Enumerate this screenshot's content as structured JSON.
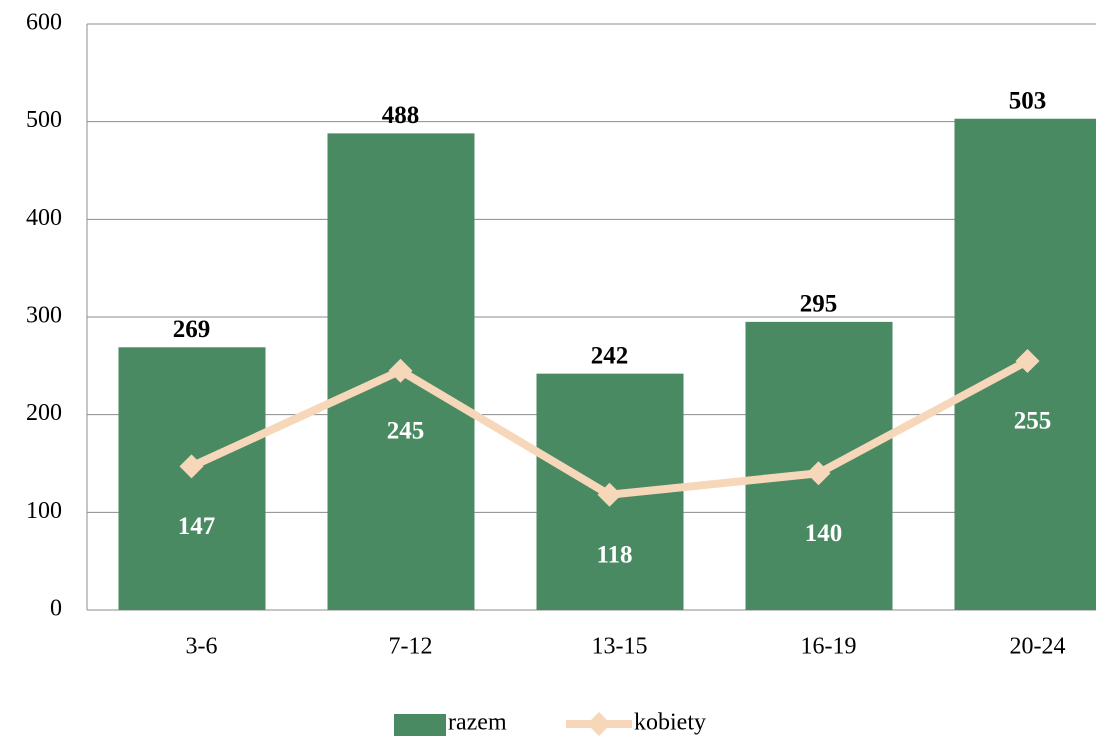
{
  "chart_data": {
    "type": "bar",
    "categories": [
      "3-6",
      "7-12",
      "13-15",
      "16-19",
      "20-24"
    ],
    "series": [
      {
        "name": "razem",
        "type": "bar",
        "color": "#4a8a62",
        "values": [
          269,
          488,
          242,
          295,
          503
        ]
      },
      {
        "name": "kobiety",
        "type": "line",
        "color": "#f7d7b9",
        "values": [
          147,
          245,
          118,
          140,
          255
        ]
      }
    ],
    "ylim": [
      0,
      600
    ],
    "yticks": [
      0,
      100,
      200,
      300,
      400,
      500,
      600
    ],
    "grid": true,
    "legend": "bottom"
  }
}
